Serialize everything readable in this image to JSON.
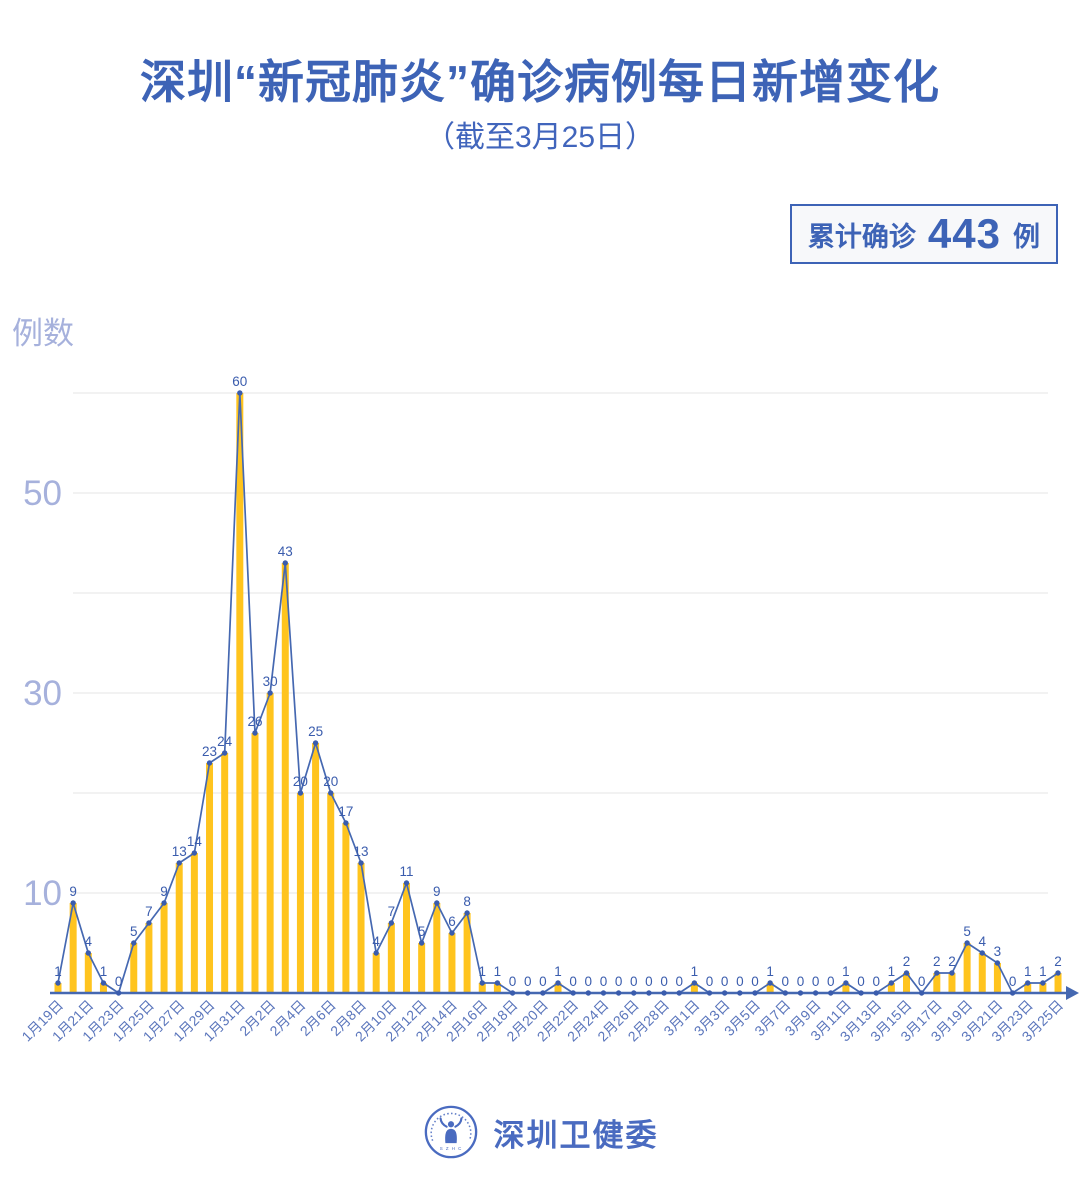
{
  "header": {
    "title": "深圳“新冠肺炎”确诊病例每日新增变化",
    "subtitle": "（截至3月25日）"
  },
  "summary_badge": {
    "prefix": "累计确诊",
    "value": "443",
    "suffix": "例"
  },
  "y_axis_unit": "例数",
  "footer": {
    "org_name": "深圳卫健委",
    "logo_text": "S Z H C"
  },
  "colors": {
    "accent_blue": "#3d63b6",
    "subtitle_blue": "#4165bc",
    "bar_yellow": "#ffc41e",
    "line_blue": "#4568b1",
    "label_blue": "#3a5cad",
    "date_blue": "#5b76bc",
    "tick_periwinkle": "#a6b1dc",
    "grid_gray": "#e9e9eb",
    "footer_blue": "#4a6bc0",
    "badge_bg": "#f7f8fa"
  },
  "chart_data": {
    "type": "bar",
    "line_overlay": true,
    "title": "深圳“新冠肺炎”确诊病例每日新增变化（截至3月25日）",
    "xlabel": "",
    "ylabel": "例数",
    "ylim": [
      0,
      62
    ],
    "grid_values": [
      10,
      20,
      30,
      40,
      50,
      60
    ],
    "yticks_labeled": [
      10,
      30,
      50
    ],
    "x_tick_every": 2,
    "data_labels": true,
    "legend": "none",
    "categories": [
      "1月19日",
      "1月20日",
      "1月21日",
      "1月22日",
      "1月23日",
      "1月24日",
      "1月25日",
      "1月26日",
      "1月27日",
      "1月28日",
      "1月29日",
      "1月30日",
      "1月31日",
      "2月1日",
      "2月2日",
      "2月3日",
      "2月4日",
      "2月5日",
      "2月6日",
      "2月7日",
      "2月8日",
      "2月9日",
      "2月10日",
      "2月11日",
      "2月12日",
      "2月13日",
      "2月14日",
      "2月15日",
      "2月16日",
      "2月17日",
      "2月18日",
      "2月19日",
      "2月20日",
      "2月21日",
      "2月22日",
      "2月23日",
      "2月24日",
      "2月25日",
      "2月26日",
      "2月27日",
      "2月28日",
      "2月29日",
      "3月1日",
      "3月2日",
      "3月3日",
      "3月4日",
      "3月5日",
      "3月6日",
      "3月7日",
      "3月8日",
      "3月9日",
      "3月10日",
      "3月11日",
      "3月12日",
      "3月13日",
      "3月14日",
      "3月15日",
      "3月16日",
      "3月17日",
      "3月18日",
      "3月19日",
      "3月20日",
      "3月21日",
      "3月22日",
      "3月23日",
      "3月24日",
      "3月25日"
    ],
    "values": [
      1,
      9,
      4,
      1,
      0,
      5,
      7,
      9,
      13,
      14,
      23,
      24,
      60,
      26,
      30,
      43,
      20,
      25,
      20,
      17,
      13,
      4,
      7,
      11,
      5,
      9,
      6,
      8,
      1,
      1,
      0,
      0,
      0,
      1,
      0,
      0,
      0,
      0,
      0,
      0,
      0,
      0,
      1,
      0,
      0,
      0,
      0,
      1,
      0,
      0,
      0,
      0,
      1,
      0,
      0,
      1,
      2,
      0,
      2,
      2,
      5,
      4,
      3,
      0,
      1,
      1,
      2
    ],
    "cumulative_total": 443
  }
}
